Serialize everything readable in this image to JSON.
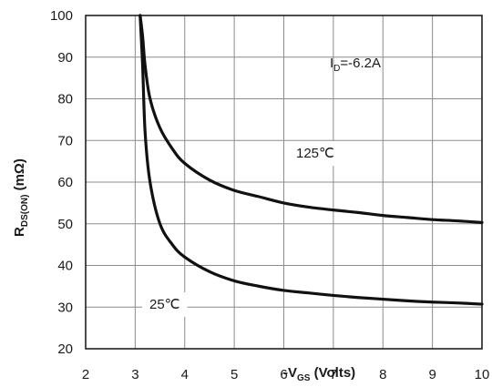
{
  "chart_data": {
    "type": "line",
    "xlabel_main": "-V",
    "xlabel_sub": "GS",
    "xlabel_unit": " (Volts)",
    "ylabel_main": "R",
    "ylabel_sub": "DS(ON)",
    "ylabel_unit": " (mΩ)",
    "xlim": [
      2,
      10
    ],
    "ylim": [
      20,
      100
    ],
    "xticks": [
      2,
      3,
      4,
      5,
      6,
      7,
      8,
      9,
      10
    ],
    "yticks": [
      20,
      30,
      40,
      50,
      60,
      70,
      80,
      90,
      100
    ],
    "grid": true,
    "condition_main": "I",
    "condition_sub": "D",
    "condition_rest": "=-6.2A",
    "series": [
      {
        "name": "125℃",
        "x": [
          3.1,
          3.15,
          3.2,
          3.3,
          3.5,
          3.75,
          4.0,
          4.5,
          5.0,
          5.5,
          6.0,
          6.5,
          7.0,
          7.5,
          8.0,
          8.5,
          9.0,
          9.5,
          10.0
        ],
        "y": [
          100,
          95,
          88,
          80,
          73,
          68,
          64.5,
          60.5,
          58,
          56.5,
          55,
          54,
          53.3,
          52.7,
          52,
          51.5,
          51,
          50.7,
          50.3
        ]
      },
      {
        "name": "25℃",
        "x": [
          3.1,
          3.15,
          3.2,
          3.3,
          3.5,
          3.75,
          4.0,
          4.5,
          5.0,
          5.5,
          6.0,
          6.5,
          7.0,
          7.5,
          8.0,
          8.5,
          9.0,
          9.5,
          10.0
        ],
        "y": [
          100,
          88,
          72,
          60,
          50,
          45,
          42,
          38.5,
          36.3,
          35,
          34,
          33.4,
          32.8,
          32.3,
          31.9,
          31.5,
          31.2,
          31.0,
          30.7
        ]
      }
    ]
  }
}
